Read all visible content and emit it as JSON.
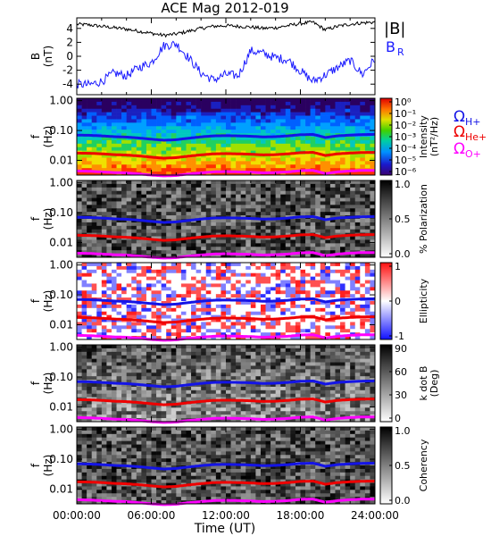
{
  "title": "ACE Mag 2012-019",
  "xaxis": {
    "label": "Time (UT)",
    "ticks": [
      "00:00:00",
      "06:00:00",
      "12:00:00",
      "18:00:00",
      "24:00:00"
    ],
    "range_hours": [
      0,
      24
    ]
  },
  "legend": {
    "B_total": "|B|",
    "B_R": "B",
    "B_R_sub": "R",
    "omega_symbol": "Ω",
    "H": "H+",
    "He": "He+",
    "O": "O+"
  },
  "colors": {
    "B_total": "#000000",
    "B_R": "#1a1aff",
    "H": "#1414e6",
    "He": "#ee0000",
    "O": "#ff00ff",
    "frame": "#000000"
  },
  "panels": [
    {
      "id": "b-field",
      "ylabel": "B",
      "yunit": "(nT)",
      "yticks": [
        "4",
        "2",
        "0",
        "-2",
        "-4"
      ],
      "ylim": [
        -5,
        5
      ]
    },
    {
      "id": "intensity",
      "ylabel": "f",
      "yunit": "(Hz)",
      "yticks": [
        "1.00",
        "0.10",
        "0.01"
      ],
      "colorbar_title": "Intensity",
      "colorbar_unit": "(nT²/Hz)",
      "colorbar_ticks": [
        "10⁰",
        "10⁻¹",
        "10⁻²",
        "10⁻³",
        "10⁻⁴",
        "10⁻⁵",
        "10⁻⁶"
      ],
      "colormap": "rainbow"
    },
    {
      "id": "polarization",
      "ylabel": "f",
      "yunit": "(Hz)",
      "yticks": [
        "1.00",
        "0.10",
        "0.01"
      ],
      "colorbar_title": "% Polarization",
      "colorbar_unit": "",
      "colorbar_ticks": [
        "1.0",
        "0.5",
        "0.0"
      ],
      "colormap": "gray"
    },
    {
      "id": "ellipticity",
      "ylabel": "f",
      "yunit": "(Hz)",
      "yticks": [
        "1.00",
        "0.10",
        "0.01"
      ],
      "colorbar_title": "Ellipticity",
      "colorbar_unit": "",
      "colorbar_ticks": [
        "1",
        "0",
        "-1"
      ],
      "colormap": "bluewhitered"
    },
    {
      "id": "kdotb",
      "ylabel": "f",
      "yunit": "(Hz)",
      "yticks": [
        "1.00",
        "0.10",
        "0.01"
      ],
      "colorbar_title": "k dot B",
      "colorbar_unit": "(Deg)",
      "colorbar_ticks": [
        "90",
        "60",
        "30",
        "0"
      ],
      "colormap": "gray"
    },
    {
      "id": "coherency",
      "ylabel": "f",
      "yunit": "(Hz)",
      "yticks": [
        "1.00",
        "0.10",
        "0.01"
      ],
      "colorbar_title": "Coherency",
      "colorbar_unit": "",
      "colorbar_ticks": [
        "1.0",
        "0.5",
        "0.0"
      ],
      "colormap": "gray"
    }
  ],
  "chart_data": {
    "type": "line",
    "title": "ACE Mag 2012-019",
    "xlabel": "Time (UT)",
    "x_hours": [
      0,
      1,
      2,
      3,
      4,
      5,
      6,
      7,
      8,
      9,
      10,
      11,
      12,
      13,
      14,
      15,
      16,
      17,
      18,
      19,
      20,
      21,
      22,
      23,
      24
    ],
    "series": [
      {
        "name": "|B|",
        "panel": "b-field",
        "values": [
          4.6,
          4.5,
          4.3,
          4.1,
          3.9,
          3.6,
          3.3,
          3.0,
          3.2,
          3.6,
          4.0,
          4.3,
          4.4,
          4.3,
          4.2,
          4.0,
          4.1,
          4.4,
          4.7,
          4.9,
          3.8,
          4.3,
          4.6,
          4.8,
          4.9
        ]
      },
      {
        "name": "B_R",
        "panel": "b-field",
        "values": [
          -4.0,
          -4.1,
          -3.6,
          -2.4,
          -2.8,
          -1.6,
          -0.9,
          1.5,
          1.8,
          -0.2,
          -2.4,
          -3.4,
          -2.6,
          -2.8,
          0.8,
          0.4,
          -0.2,
          -0.5,
          -2.1,
          -3.6,
          -2.7,
          -1.6,
          -0.6,
          -2.6,
          -0.4
        ]
      },
      {
        "name": "Ω H+",
        "panel": "spectral",
        "unit": "Hz",
        "values": [
          0.07,
          0.069,
          0.066,
          0.062,
          0.06,
          0.056,
          0.051,
          0.047,
          0.049,
          0.055,
          0.061,
          0.066,
          0.067,
          0.066,
          0.064,
          0.061,
          0.062,
          0.066,
          0.072,
          0.074,
          0.058,
          0.066,
          0.07,
          0.073,
          0.074
        ]
      },
      {
        "name": "Ω He+",
        "panel": "spectral",
        "unit": "Hz",
        "values": [
          0.0175,
          0.0172,
          0.0165,
          0.0155,
          0.015,
          0.014,
          0.0128,
          0.0118,
          0.0123,
          0.0138,
          0.0152,
          0.0165,
          0.0168,
          0.0165,
          0.016,
          0.0152,
          0.0155,
          0.0165,
          0.018,
          0.0185,
          0.0145,
          0.0165,
          0.0175,
          0.0183,
          0.0185
        ]
      },
      {
        "name": "Ω O+",
        "panel": "spectral",
        "unit": "Hz",
        "values": [
          0.0044,
          0.0043,
          0.0041,
          0.0039,
          0.0038,
          0.0035,
          0.0032,
          0.003,
          0.0031,
          0.0035,
          0.0038,
          0.0041,
          0.0042,
          0.0041,
          0.004,
          0.0038,
          0.0039,
          0.0041,
          0.0045,
          0.0046,
          0.0036,
          0.0041,
          0.0044,
          0.0046,
          0.0046
        ]
      }
    ]
  }
}
